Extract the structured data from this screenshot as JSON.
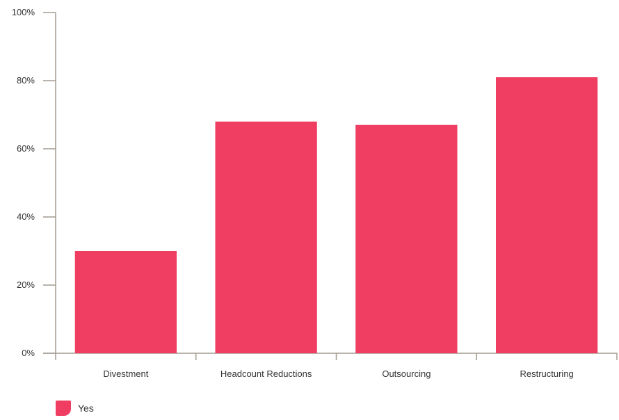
{
  "chart_data": {
    "type": "bar",
    "categories": [
      "Divestment",
      "Headcount Reductions",
      "Outsourcing",
      "Restructuring"
    ],
    "series": [
      {
        "name": "Yes",
        "values": [
          30,
          68,
          67,
          81
        ],
        "color": "#ef3e62"
      }
    ],
    "yticks": [
      "0%",
      "20%",
      "40%",
      "60%",
      "80%",
      "100%"
    ],
    "ylim": [
      0,
      100
    ],
    "legend": "bottom-left",
    "grid": false,
    "axis_color": "#a39b92"
  }
}
